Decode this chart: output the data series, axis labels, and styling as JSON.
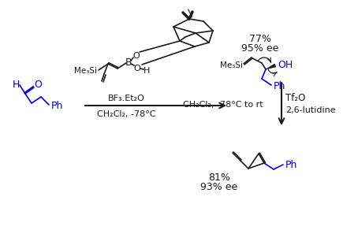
{
  "bg_color": "#ffffff",
  "black": "#1a1a1a",
  "blue": "#0000cc",
  "text_labels": {
    "bf3": "BF₃.Et₂O",
    "ch2cl2_1": "CH₂Cl₂, -78°C",
    "me3si_1": "Me₃Si",
    "me3si_2": "Me₃Si",
    "yield1": "77%",
    "ee1": "95% ee",
    "tf2o": "Tf₂O",
    "lutidine": "2,6-lutidine",
    "ch2cl2_2": "CH₂Cl₂, -78°C to rt",
    "yield2": "81%",
    "ee2": "93% ee",
    "oh": "OH",
    "ph1": "Ph",
    "ph2": "Ph",
    "b_label": "B",
    "h_label": "H",
    "o1_label": "O",
    "o2_label": "O"
  }
}
